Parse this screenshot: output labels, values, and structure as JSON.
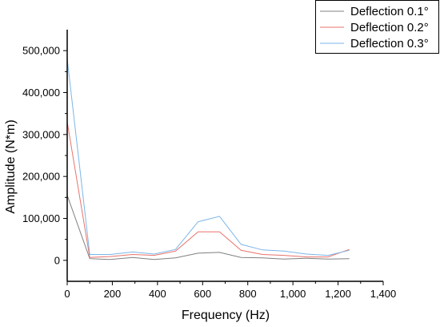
{
  "chart_data": {
    "type": "line",
    "xlabel": "Frequency (Hz)",
    "ylabel": "Amplitude (N*m)",
    "xlim": [
      0,
      1400
    ],
    "ylim": [
      -50000,
      550000
    ],
    "xticks": [
      0,
      200,
      400,
      600,
      800,
      1000,
      1200,
      1400
    ],
    "xtick_labels": [
      "0",
      "200",
      "400",
      "600",
      "800",
      "1,000",
      "1,200",
      "1,400"
    ],
    "yticks": [
      0,
      100000,
      200000,
      300000,
      400000,
      500000
    ],
    "ytick_labels": [
      "0",
      "100,000",
      "200,000",
      "300,000",
      "400,000",
      "500,000"
    ],
    "grid": false,
    "legend_position": "top-right",
    "x": [
      0,
      100,
      190,
      290,
      385,
      480,
      580,
      675,
      770,
      865,
      960,
      1060,
      1155,
      1250
    ],
    "series": [
      {
        "name": "Deflection 0.1°",
        "color": "#808080",
        "values": [
          155000,
          4000,
          2000,
          7000,
          2000,
          6000,
          17000,
          19000,
          7000,
          6000,
          3000,
          5000,
          3000,
          4000
        ]
      },
      {
        "name": "Deflection 0.2°",
        "color": "#e8736b",
        "values": [
          330000,
          7000,
          9000,
          14000,
          12000,
          22000,
          68000,
          68000,
          24000,
          14000,
          12000,
          8000,
          8000,
          26000
        ]
      },
      {
        "name": "Deflection 0.3°",
        "color": "#7cb6e8",
        "values": [
          480000,
          14000,
          14000,
          20000,
          15000,
          26000,
          92000,
          105000,
          38000,
          25000,
          22000,
          15000,
          12000,
          24000
        ]
      }
    ]
  }
}
